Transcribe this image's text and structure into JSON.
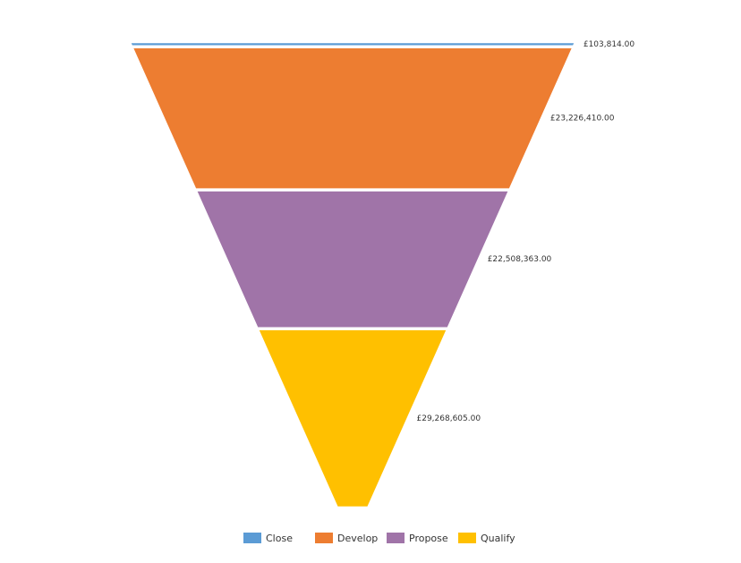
{
  "chart_data": {
    "type": "funnel",
    "categories": [
      "Close",
      "Develop",
      "Propose",
      "Qualify"
    ],
    "values": [
      103814,
      23226410,
      22508363,
      29268605
    ],
    "value_labels": [
      "£103,814.00",
      "£23,226,410.00",
      "£22,508,363.00",
      "£29,268,605.00"
    ],
    "colors": [
      "#5b9bd5",
      "#ed7d31",
      "#a074a8",
      "#ffc000"
    ],
    "legend": "bottom"
  }
}
